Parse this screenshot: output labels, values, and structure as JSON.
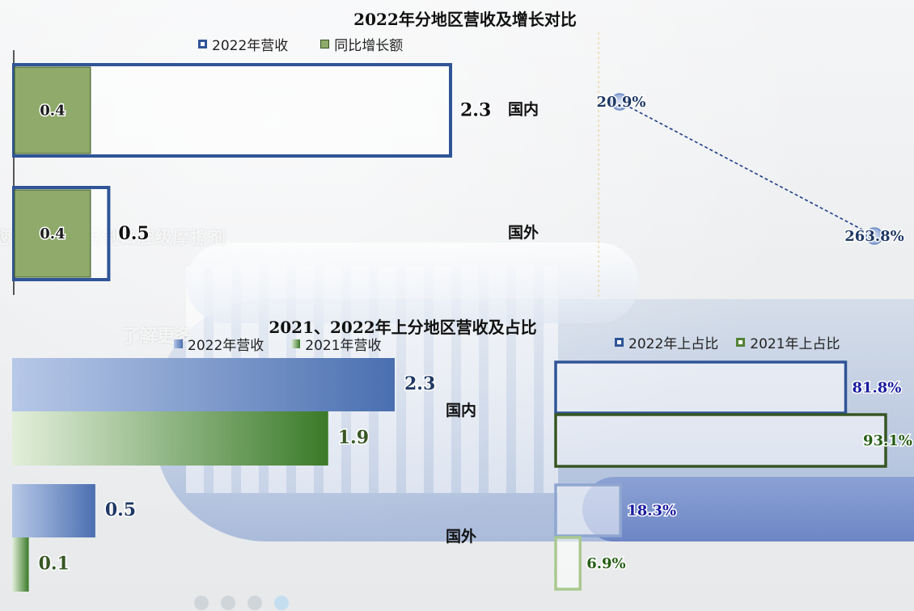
{
  "background": {
    "watermark_line1": "您提供健身定制口腔级摩擦剂",
    "watermark_line2": "了解更多",
    "carousel_dots": 4,
    "carousel_active": 3
  },
  "colors": {
    "navy": "#2f5597",
    "navy_text": "#1f3864",
    "green_fill": "#8faa6b",
    "green_dark": "#375623",
    "blue_grad_light": "#b4c6e7",
    "blue_grad_dark": "#4a6fb0",
    "green_grad_light": "#e2efda",
    "green_grad_dark": "#3a7a28",
    "pct_blue": "#1a1aa0",
    "pct_green": "#255e14"
  },
  "chart_data": [
    {
      "type": "bar",
      "title": "2022年分地区营收及增长对比",
      "categories": [
        "国内",
        "国外"
      ],
      "series": [
        {
          "name": "2022年营收",
          "values": [
            2.3,
            0.5
          ]
        },
        {
          "name": "同比增长额",
          "values": [
            0.4,
            0.4
          ]
        }
      ],
      "xlim": [
        0,
        2.3
      ],
      "growth_line": {
        "values": [
          20.9,
          263.8
        ],
        "labels": [
          "20.9%",
          "263.8%"
        ],
        "unit": "%"
      },
      "legend": "top"
    },
    {
      "type": "bar",
      "title": "2021、2022年上分地区营收及占比",
      "categories": [
        "国内",
        "国外"
      ],
      "series": [
        {
          "name": "2022年营收",
          "values": [
            2.3,
            0.5
          ]
        },
        {
          "name": "2021年营收",
          "values": [
            1.9,
            0.1
          ]
        }
      ],
      "xlim": [
        0,
        2.3
      ],
      "legend": "top"
    },
    {
      "type": "bar",
      "categories": [
        "国内",
        "国外"
      ],
      "series": [
        {
          "name": "2022年上占比",
          "values": [
            81.8,
            18.3
          ],
          "labels": [
            "81.8%",
            "18.3%"
          ]
        },
        {
          "name": "2021年上占比",
          "values": [
            93.1,
            6.9
          ],
          "labels": [
            "93.1%",
            "6.9%"
          ]
        }
      ],
      "unit": "%",
      "xlim": [
        0,
        93.1
      ],
      "legend": "top"
    }
  ]
}
